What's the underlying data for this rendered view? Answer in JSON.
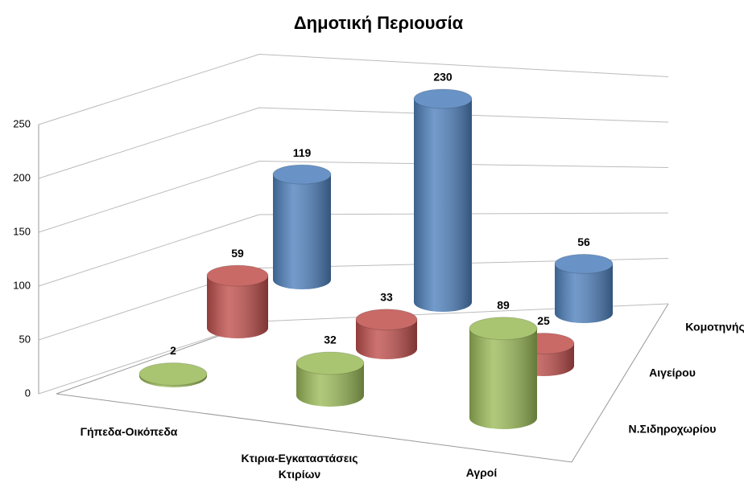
{
  "chart_data": {
    "type": "bar3d",
    "title": "Δημοτική Περιουσία",
    "categories": [
      "Γήπεδα-Οικόπεδα",
      "Κτιρια-Εγκαταστάσεις Κτιρίων",
      "Αγροί"
    ],
    "series": [
      {
        "name": "Ν.Σιδηροχωρίου",
        "color": "#9bbb59",
        "values": [
          2,
          32,
          89
        ]
      },
      {
        "name": "Αιγείρου",
        "color": "#c0504d",
        "values": [
          59,
          33,
          25
        ]
      },
      {
        "name": "Κομοτηνής",
        "color": "#4f81bd",
        "values": [
          119,
          230,
          56
        ]
      }
    ],
    "ylim": [
      0,
      250
    ],
    "yticks": [
      0,
      50,
      100,
      150,
      200,
      250
    ],
    "grid": true
  }
}
